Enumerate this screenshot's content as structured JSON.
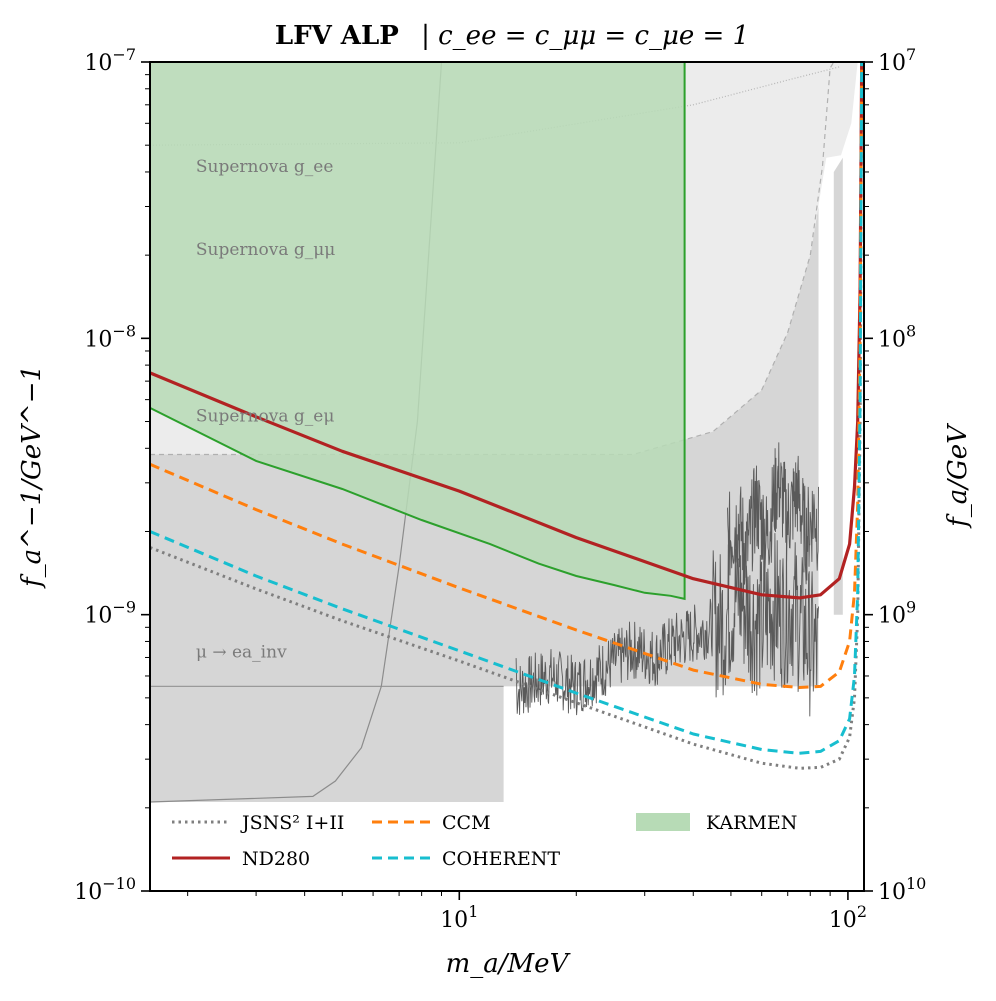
{
  "chart_data": {
    "type": "line",
    "title": {
      "bold": "LFV ALP",
      "rest": "| c_ee = c_μμ = c_μe = 1"
    },
    "xlabel": "m_a/MeV",
    "ylabel_left": "f_a^−1/GeV^−1",
    "ylabel_right": "f_a/GeV",
    "xscale": "log",
    "yscale": "log",
    "xlim": [
      1.6,
      110
    ],
    "ylim": [
      1e-10,
      1e-07
    ],
    "x_ticks": [
      {
        "value": 10,
        "label": "10^1"
      },
      {
        "value": 100,
        "label": "10^2"
      }
    ],
    "y_ticks_left": [
      {
        "value": 1e-10,
        "label": "10^−10"
      },
      {
        "value": 1e-09,
        "label": "10^−9"
      },
      {
        "value": 1e-08,
        "label": "10^−8"
      },
      {
        "value": 1e-07,
        "label": "10^−7"
      }
    ],
    "y_ticks_right": [
      {
        "value": 1e-10,
        "label": "10^10"
      },
      {
        "value": 1e-09,
        "label": "10^9"
      },
      {
        "value": 1e-08,
        "label": "10^8"
      },
      {
        "value": 1e-07,
        "label": "10^7"
      }
    ],
    "grid": false,
    "legend_placement": "bottom",
    "region_labels": [
      {
        "text": "Supernova g_ee",
        "x": 2.1,
        "y": 4e-08
      },
      {
        "text": "Supernova g_μμ",
        "x": 2.1,
        "y": 2e-08
      },
      {
        "text": "Supernova g_eμ",
        "x": 2.1,
        "y": 5e-09
      },
      {
        "text": "μ → ea_inv",
        "x": 2.1,
        "y": 7e-10
      }
    ],
    "shaded_regions": [
      {
        "name": "",
        "color": "#ececec",
        "points": [
          [
            1.6,
            1e-07
          ],
          [
            1.6,
            3.8e-09
          ],
          [
            28,
            3.8e-09
          ],
          [
            45,
            4.6e-09
          ],
          [
            60,
            6.5e-09
          ],
          [
            70,
            1.05e-08
          ],
          [
            80,
            2e-08
          ],
          [
            88,
            4.5e-08
          ],
          [
            96,
            4.6e-08
          ],
          [
            102,
            6e-08
          ],
          [
            106,
            1e-07
          ]
        ]
      },
      {
        "name": "",
        "color": "#d6d6d6",
        "points": [
          [
            1.6,
            3.8e-09
          ],
          [
            28,
            3.8e-09
          ],
          [
            45,
            4.6e-09
          ],
          [
            60,
            6.5e-09
          ],
          [
            70,
            1.05e-08
          ],
          [
            80,
            2e-08
          ],
          [
            84,
            3e-08
          ],
          [
            84,
            5.5e-10
          ],
          [
            1.6,
            5.5e-10
          ]
        ]
      },
      {
        "name": "",
        "color": "#d6d6d6",
        "points": [
          [
            1.6,
            5.5e-10
          ],
          [
            13,
            5.5e-10
          ],
          [
            13,
            2.1e-10
          ],
          [
            1.6,
            2.1e-10
          ]
        ]
      },
      {
        "name": "",
        "color": "#d6d6d6",
        "points": [
          [
            1.6,
            2.1e-10
          ],
          [
            4.2,
            2.2e-10
          ],
          [
            4.8,
            2.5e-10
          ],
          [
            5.6,
            3.3e-10
          ],
          [
            6.0,
            3.8e-10
          ],
          [
            6.3,
            4.8e-10
          ],
          [
            6.5,
            5.5e-10
          ],
          [
            1.6,
            5.5e-10
          ]
        ]
      },
      {
        "name": "",
        "color": "#d6d6d6",
        "points": [
          [
            92,
            4e-08
          ],
          [
            97,
            4.5e-08
          ],
          [
            97,
            1e-09
          ],
          [
            92,
            1e-09
          ]
        ]
      }
    ],
    "band_lines": [
      {
        "name": "",
        "color": "#b0b0b0",
        "dash": "5,4",
        "points": [
          [
            1.6,
            3.8e-09
          ],
          [
            28,
            3.8e-09
          ],
          [
            45,
            4.6e-09
          ],
          [
            60,
            6.5e-09
          ],
          [
            70,
            1.05e-08
          ],
          [
            80,
            2e-08
          ],
          [
            86,
            4.2e-08
          ],
          [
            90,
            9.5e-08
          ],
          [
            92,
            1e-07
          ]
        ]
      },
      {
        "name": "",
        "color": "#9a9a9a",
        "dash": "",
        "points": [
          [
            1.6,
            5.5e-10
          ],
          [
            13,
            5.5e-10
          ]
        ]
      },
      {
        "name": "",
        "color": "#8c8c8c",
        "dash": "",
        "points": [
          [
            9.0,
            1e-07
          ],
          [
            8.5,
            3e-08
          ],
          [
            7.8,
            5e-09
          ],
          [
            7.0,
            1.5e-09
          ],
          [
            6.3,
            5.5e-10
          ],
          [
            5.6,
            3.3e-10
          ],
          [
            4.8,
            2.5e-10
          ],
          [
            4.2,
            2.2e-10
          ],
          [
            1.6,
            2.1e-10
          ]
        ]
      },
      {
        "name": "",
        "color": "#b5b5b5",
        "dash": "1,2",
        "points": [
          [
            1.6,
            5e-08
          ],
          [
            10,
            5.1e-08
          ],
          [
            40,
            7e-08
          ],
          [
            70,
            8.6e-08
          ],
          [
            95,
            9.6e-08
          ]
        ]
      }
    ],
    "fluctuating_bound": {
      "color": "#5a5a5a",
      "x_start": 14,
      "x_end": 84,
      "y_points": [
        [
          14,
          5.3e-10
        ],
        [
          17,
          6e-10
        ],
        [
          20,
          5.5e-10
        ],
        [
          24,
          6.5e-10
        ],
        [
          28,
          7.5e-10
        ],
        [
          32,
          7e-10
        ],
        [
          36,
          8e-10
        ],
        [
          40,
          8.5e-10
        ],
        [
          44,
          9e-10
        ],
        [
          48,
          9.5e-10
        ],
        [
          52,
          1.2e-09
        ],
        [
          56,
          1e-09
        ],
        [
          60,
          9e-10
        ],
        [
          64,
          1.1e-09
        ],
        [
          68,
          1e-09
        ],
        [
          72,
          1.1e-09
        ],
        [
          76,
          9e-10
        ],
        [
          80,
          8e-10
        ],
        [
          84,
          7e-10
        ]
      ],
      "upper_piece": [
        [
          49,
          1.8e-09
        ],
        [
          52,
          2.2e-09
        ],
        [
          55,
          1.7e-09
        ],
        [
          58,
          2.5e-09
        ],
        [
          62,
          1.9e-09
        ],
        [
          66,
          3.1e-09
        ],
        [
          70,
          2.2e-09
        ],
        [
          74,
          2.8e-09
        ],
        [
          78,
          1.9e-09
        ],
        [
          82,
          2.4e-09
        ],
        [
          84,
          2e-09
        ]
      ]
    },
    "karmen": {
      "name": "KARMEN",
      "color": "#b7dbb6",
      "edge_color": "#2ca02c",
      "x_max": 38,
      "lower": [
        [
          1.6,
          5.6e-09
        ],
        [
          3,
          3.6e-09
        ],
        [
          5,
          2.85e-09
        ],
        [
          8,
          2.2e-09
        ],
        [
          12,
          1.8e-09
        ],
        [
          16,
          1.53e-09
        ],
        [
          20,
          1.38e-09
        ],
        [
          25,
          1.28e-09
        ],
        [
          30,
          1.2e-09
        ],
        [
          35,
          1.17e-09
        ],
        [
          38,
          1.14e-09
        ]
      ]
    },
    "series": [
      {
        "name": "JSNS² I+II",
        "color": "#7f7f7f",
        "style": "dotted",
        "points": [
          [
            1.6,
            1.75e-09
          ],
          [
            3,
            1.24e-09
          ],
          [
            5,
            9.5e-10
          ],
          [
            10,
            6.8e-10
          ],
          [
            20,
            4.8e-10
          ],
          [
            40,
            3.4e-10
          ],
          [
            60,
            2.9e-10
          ],
          [
            75,
            2.78e-10
          ],
          [
            85,
            2.8e-10
          ],
          [
            95,
            3e-10
          ],
          [
            101,
            3.6e-10
          ],
          [
            104,
            5e-10
          ],
          [
            106,
            1e-09
          ],
          [
            107.5,
            5e-09
          ],
          [
            108.5,
            1e-07
          ]
        ]
      },
      {
        "name": "ND280",
        "color": "#b22222",
        "style": "solid",
        "points": [
          [
            1.6,
            7.5e-09
          ],
          [
            3,
            5.2e-09
          ],
          [
            5,
            3.9e-09
          ],
          [
            10,
            2.8e-09
          ],
          [
            20,
            1.9e-09
          ],
          [
            40,
            1.35e-09
          ],
          [
            60,
            1.18e-09
          ],
          [
            75,
            1.15e-09
          ],
          [
            85,
            1.18e-09
          ],
          [
            95,
            1.35e-09
          ],
          [
            101,
            1.8e-09
          ],
          [
            104,
            2.9e-09
          ],
          [
            106,
            5e-09
          ],
          [
            107.5,
            1.5e-08
          ],
          [
            108.5,
            1e-07
          ]
        ]
      },
      {
        "name": "CCM",
        "color": "#ff7f0e",
        "style": "dashed",
        "points": [
          [
            1.6,
            3.5e-09
          ],
          [
            3,
            2.4e-09
          ],
          [
            5,
            1.8e-09
          ],
          [
            10,
            1.25e-09
          ],
          [
            20,
            8.8e-10
          ],
          [
            40,
            6.3e-10
          ],
          [
            60,
            5.6e-10
          ],
          [
            75,
            5.45e-10
          ],
          [
            85,
            5.5e-10
          ],
          [
            95,
            6.2e-10
          ],
          [
            101,
            8e-10
          ],
          [
            104,
            1.2e-09
          ],
          [
            106,
            2.5e-09
          ],
          [
            107.5,
            1e-08
          ],
          [
            108.5,
            1e-07
          ]
        ]
      },
      {
        "name": "COHERENT",
        "color": "#17becf",
        "style": "dashed",
        "points": [
          [
            1.6,
            2e-09
          ],
          [
            3,
            1.38e-09
          ],
          [
            5,
            1.05e-09
          ],
          [
            10,
            7.4e-10
          ],
          [
            20,
            5.2e-10
          ],
          [
            40,
            3.7e-10
          ],
          [
            60,
            3.25e-10
          ],
          [
            75,
            3.15e-10
          ],
          [
            85,
            3.2e-10
          ],
          [
            95,
            3.5e-10
          ],
          [
            101,
            4.2e-10
          ],
          [
            104,
            6e-10
          ],
          [
            106,
            1.2e-09
          ],
          [
            107.5,
            6e-09
          ],
          [
            108.5,
            1e-07
          ]
        ]
      }
    ]
  }
}
